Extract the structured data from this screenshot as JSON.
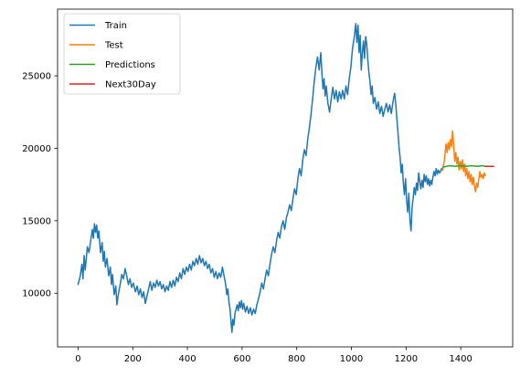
{
  "chart_data": {
    "type": "line",
    "title": "",
    "xlabel": "",
    "ylabel": "",
    "xlim": [
      -75,
      1590
    ],
    "ylim": [
      6300,
      29600
    ],
    "xticks": [
      0,
      200,
      400,
      600,
      800,
      1000,
      1200,
      1400
    ],
    "xtick_labels": [
      "0",
      "200",
      "400",
      "600",
      "800",
      "1000",
      "1200",
      "1400"
    ],
    "yticks": [
      10000,
      15000,
      20000,
      25000
    ],
    "ytick_labels": [
      "10000",
      "15000",
      "20000",
      "25000"
    ],
    "grid": false,
    "legend_position": "top-left",
    "series": [
      {
        "name": "Train",
        "color": "#1f77b4",
        "points": [
          [
            0,
            10600
          ],
          [
            8,
            11200
          ],
          [
            14,
            12000
          ],
          [
            18,
            11000
          ],
          [
            22,
            12600
          ],
          [
            26,
            11600
          ],
          [
            30,
            12400
          ],
          [
            34,
            13200
          ],
          [
            40,
            12800
          ],
          [
            46,
            13600
          ],
          [
            52,
            14400
          ],
          [
            56,
            13800
          ],
          [
            60,
            14800
          ],
          [
            64,
            14200
          ],
          [
            68,
            14700
          ],
          [
            72,
            13800
          ],
          [
            76,
            14300
          ],
          [
            82,
            12800
          ],
          [
            88,
            13500
          ],
          [
            92,
            12200
          ],
          [
            96,
            12900
          ],
          [
            100,
            11800
          ],
          [
            106,
            12400
          ],
          [
            112,
            11200
          ],
          [
            118,
            11800
          ],
          [
            122,
            10600
          ],
          [
            126,
            11300
          ],
          [
            132,
            9900
          ],
          [
            138,
            10500
          ],
          [
            142,
            9200
          ],
          [
            148,
            10000
          ],
          [
            154,
            10600
          ],
          [
            160,
            11300
          ],
          [
            166,
            11000
          ],
          [
            172,
            11700
          ],
          [
            178,
            11200
          ],
          [
            184,
            10600
          ],
          [
            190,
            11000
          ],
          [
            196,
            10400
          ],
          [
            202,
            10700
          ],
          [
            210,
            10100
          ],
          [
            216,
            10500
          ],
          [
            222,
            9900
          ],
          [
            228,
            10300
          ],
          [
            234,
            9700
          ],
          [
            240,
            10100
          ],
          [
            246,
            9300
          ],
          [
            252,
            9800
          ],
          [
            258,
            10300
          ],
          [
            264,
            10800
          ],
          [
            270,
            10200
          ],
          [
            276,
            10700
          ],
          [
            282,
            10400
          ],
          [
            288,
            10900
          ],
          [
            294,
            10500
          ],
          [
            300,
            10800
          ],
          [
            306,
            10300
          ],
          [
            312,
            10600
          ],
          [
            318,
            10100
          ],
          [
            324,
            10500
          ],
          [
            330,
            10200
          ],
          [
            336,
            10800
          ],
          [
            342,
            10400
          ],
          [
            348,
            10900
          ],
          [
            354,
            10500
          ],
          [
            360,
            11100
          ],
          [
            366,
            10800
          ],
          [
            372,
            11400
          ],
          [
            378,
            11000
          ],
          [
            384,
            11700
          ],
          [
            390,
            11300
          ],
          [
            396,
            11800
          ],
          [
            402,
            11500
          ],
          [
            408,
            12000
          ],
          [
            414,
            11600
          ],
          [
            420,
            12200
          ],
          [
            426,
            11900
          ],
          [
            432,
            12400
          ],
          [
            438,
            12000
          ],
          [
            444,
            12600
          ],
          [
            450,
            12100
          ],
          [
            456,
            12400
          ],
          [
            462,
            11900
          ],
          [
            468,
            12200
          ],
          [
            474,
            11700
          ],
          [
            480,
            12000
          ],
          [
            486,
            11400
          ],
          [
            492,
            11700
          ],
          [
            498,
            11100
          ],
          [
            504,
            11500
          ],
          [
            510,
            11000
          ],
          [
            516,
            11400
          ],
          [
            522,
            11100
          ],
          [
            528,
            11800
          ],
          [
            534,
            11200
          ],
          [
            540,
            10600
          ],
          [
            544,
            9900
          ],
          [
            548,
            10300
          ],
          [
            552,
            9400
          ],
          [
            556,
            8900
          ],
          [
            560,
            7900
          ],
          [
            563,
            7300
          ],
          [
            566,
            8200
          ],
          [
            570,
            7800
          ],
          [
            574,
            8600
          ],
          [
            578,
            8900
          ],
          [
            582,
            9200
          ],
          [
            586,
            8800
          ],
          [
            590,
            9400
          ],
          [
            594,
            9000
          ],
          [
            598,
            9500
          ],
          [
            602,
            8900
          ],
          [
            606,
            9300
          ],
          [
            612,
            8700
          ],
          [
            618,
            9100
          ],
          [
            624,
            8600
          ],
          [
            630,
            9000
          ],
          [
            636,
            8500
          ],
          [
            642,
            8900
          ],
          [
            648,
            8600
          ],
          [
            654,
            9200
          ],
          [
            660,
            9600
          ],
          [
            666,
            10100
          ],
          [
            672,
            10700
          ],
          [
            678,
            10300
          ],
          [
            684,
            11000
          ],
          [
            690,
            11600
          ],
          [
            696,
            11200
          ],
          [
            702,
            12000
          ],
          [
            708,
            12700
          ],
          [
            714,
            13200
          ],
          [
            720,
            12800
          ],
          [
            726,
            13600
          ],
          [
            732,
            14200
          ],
          [
            738,
            13800
          ],
          [
            744,
            14600
          ],
          [
            750,
            15000
          ],
          [
            756,
            14400
          ],
          [
            762,
            15200
          ],
          [
            768,
            15600
          ],
          [
            774,
            16100
          ],
          [
            780,
            15700
          ],
          [
            786,
            16500
          ],
          [
            792,
            17200
          ],
          [
            798,
            16800
          ],
          [
            804,
            17900
          ],
          [
            810,
            18600
          ],
          [
            816,
            18100
          ],
          [
            822,
            19200
          ],
          [
            828,
            19900
          ],
          [
            834,
            19500
          ],
          [
            840,
            20600
          ],
          [
            846,
            21400
          ],
          [
            852,
            22300
          ],
          [
            858,
            23400
          ],
          [
            864,
            24600
          ],
          [
            870,
            25600
          ],
          [
            876,
            26300
          ],
          [
            882,
            25400
          ],
          [
            888,
            26600
          ],
          [
            892,
            25200
          ],
          [
            896,
            24100
          ],
          [
            900,
            24800
          ],
          [
            904,
            23600
          ],
          [
            908,
            24300
          ],
          [
            914,
            23100
          ],
          [
            920,
            22500
          ],
          [
            926,
            23400
          ],
          [
            932,
            24200
          ],
          [
            938,
            23400
          ],
          [
            944,
            24000
          ],
          [
            950,
            23200
          ],
          [
            956,
            23900
          ],
          [
            962,
            23400
          ],
          [
            968,
            24000
          ],
          [
            974,
            23400
          ],
          [
            980,
            24300
          ],
          [
            986,
            23700
          ],
          [
            992,
            24800
          ],
          [
            998,
            25600
          ],
          [
            1004,
            26900
          ],
          [
            1010,
            27600
          ],
          [
            1016,
            28600
          ],
          [
            1020,
            27300
          ],
          [
            1024,
            28500
          ],
          [
            1028,
            26600
          ],
          [
            1032,
            27800
          ],
          [
            1036,
            25400
          ],
          [
            1040,
            26600
          ],
          [
            1044,
            27400
          ],
          [
            1048,
            26200
          ],
          [
            1052,
            27700
          ],
          [
            1056,
            27200
          ],
          [
            1060,
            26100
          ],
          [
            1064,
            25200
          ],
          [
            1068,
            24600
          ],
          [
            1072,
            23700
          ],
          [
            1076,
            24300
          ],
          [
            1080,
            23100
          ],
          [
            1086,
            23500
          ],
          [
            1092,
            22700
          ],
          [
            1098,
            23200
          ],
          [
            1104,
            22400
          ],
          [
            1110,
            22900
          ],
          [
            1116,
            22200
          ],
          [
            1122,
            22700
          ],
          [
            1128,
            23100
          ],
          [
            1134,
            22500
          ],
          [
            1140,
            23000
          ],
          [
            1146,
            22400
          ],
          [
            1152,
            23200
          ],
          [
            1158,
            23800
          ],
          [
            1162,
            23100
          ],
          [
            1166,
            22100
          ],
          [
            1170,
            21200
          ],
          [
            1174,
            20100
          ],
          [
            1178,
            19400
          ],
          [
            1182,
            18300
          ],
          [
            1186,
            18900
          ],
          [
            1190,
            17600
          ],
          [
            1194,
            16800
          ],
          [
            1198,
            17900
          ],
          [
            1202,
            16400
          ],
          [
            1206,
            15600
          ],
          [
            1210,
            16900
          ],
          [
            1214,
            15100
          ],
          [
            1218,
            14300
          ],
          [
            1222,
            15900
          ],
          [
            1226,
            16600
          ],
          [
            1230,
            17300
          ],
          [
            1234,
            16800
          ],
          [
            1238,
            17600
          ],
          [
            1242,
            17100
          ],
          [
            1246,
            18300
          ],
          [
            1250,
            17700
          ],
          [
            1254,
            17200
          ],
          [
            1258,
            17800
          ],
          [
            1262,
            17300
          ],
          [
            1266,
            18200
          ],
          [
            1270,
            17700
          ],
          [
            1274,
            18100
          ],
          [
            1278,
            17500
          ],
          [
            1282,
            17900
          ],
          [
            1286,
            17400
          ],
          [
            1290,
            17800
          ],
          [
            1294,
            17500
          ],
          [
            1298,
            18000
          ],
          [
            1302,
            18400
          ],
          [
            1306,
            18100
          ],
          [
            1310,
            18600
          ],
          [
            1314,
            18200
          ],
          [
            1318,
            18500
          ],
          [
            1322,
            18300
          ],
          [
            1326,
            18400
          ],
          [
            1330,
            18600
          ],
          [
            1334,
            18500
          ]
        ]
      },
      {
        "name": "Test",
        "color": "#ff7f0e",
        "points": [
          [
            1334,
            18500
          ],
          [
            1338,
            18900
          ],
          [
            1342,
            19500
          ],
          [
            1346,
            20300
          ],
          [
            1350,
            19700
          ],
          [
            1354,
            20400
          ],
          [
            1358,
            19900
          ],
          [
            1362,
            20600
          ],
          [
            1366,
            20100
          ],
          [
            1370,
            21200
          ],
          [
            1374,
            20300
          ],
          [
            1378,
            19100
          ],
          [
            1382,
            19700
          ],
          [
            1386,
            18900
          ],
          [
            1390,
            19400
          ],
          [
            1394,
            18500
          ],
          [
            1398,
            19100
          ],
          [
            1402,
            18600
          ],
          [
            1406,
            19200
          ],
          [
            1410,
            18400
          ],
          [
            1414,
            18900
          ],
          [
            1418,
            18100
          ],
          [
            1422,
            18600
          ],
          [
            1426,
            17900
          ],
          [
            1430,
            18400
          ],
          [
            1434,
            17700
          ],
          [
            1438,
            18200
          ],
          [
            1442,
            17500
          ],
          [
            1446,
            18000
          ],
          [
            1450,
            17400
          ],
          [
            1454,
            17000
          ],
          [
            1458,
            17600
          ],
          [
            1462,
            17300
          ],
          [
            1466,
            17900
          ],
          [
            1470,
            18400
          ],
          [
            1474,
            18000
          ],
          [
            1478,
            18200
          ],
          [
            1482,
            17900
          ],
          [
            1486,
            18300
          ],
          [
            1490,
            18100
          ]
        ]
      },
      {
        "name": "Predictions",
        "color": "#2ca02c",
        "points": [
          [
            1334,
            18700
          ],
          [
            1360,
            18800
          ],
          [
            1380,
            18750
          ],
          [
            1400,
            18800
          ],
          [
            1420,
            18750
          ],
          [
            1440,
            18800
          ],
          [
            1460,
            18750
          ],
          [
            1480,
            18800
          ],
          [
            1490,
            18750
          ]
        ]
      },
      {
        "name": "Next30Day",
        "color": "#d62728",
        "points": [
          [
            1490,
            18750
          ],
          [
            1500,
            18750
          ],
          [
            1510,
            18750
          ],
          [
            1520,
            18750
          ]
        ]
      }
    ]
  }
}
